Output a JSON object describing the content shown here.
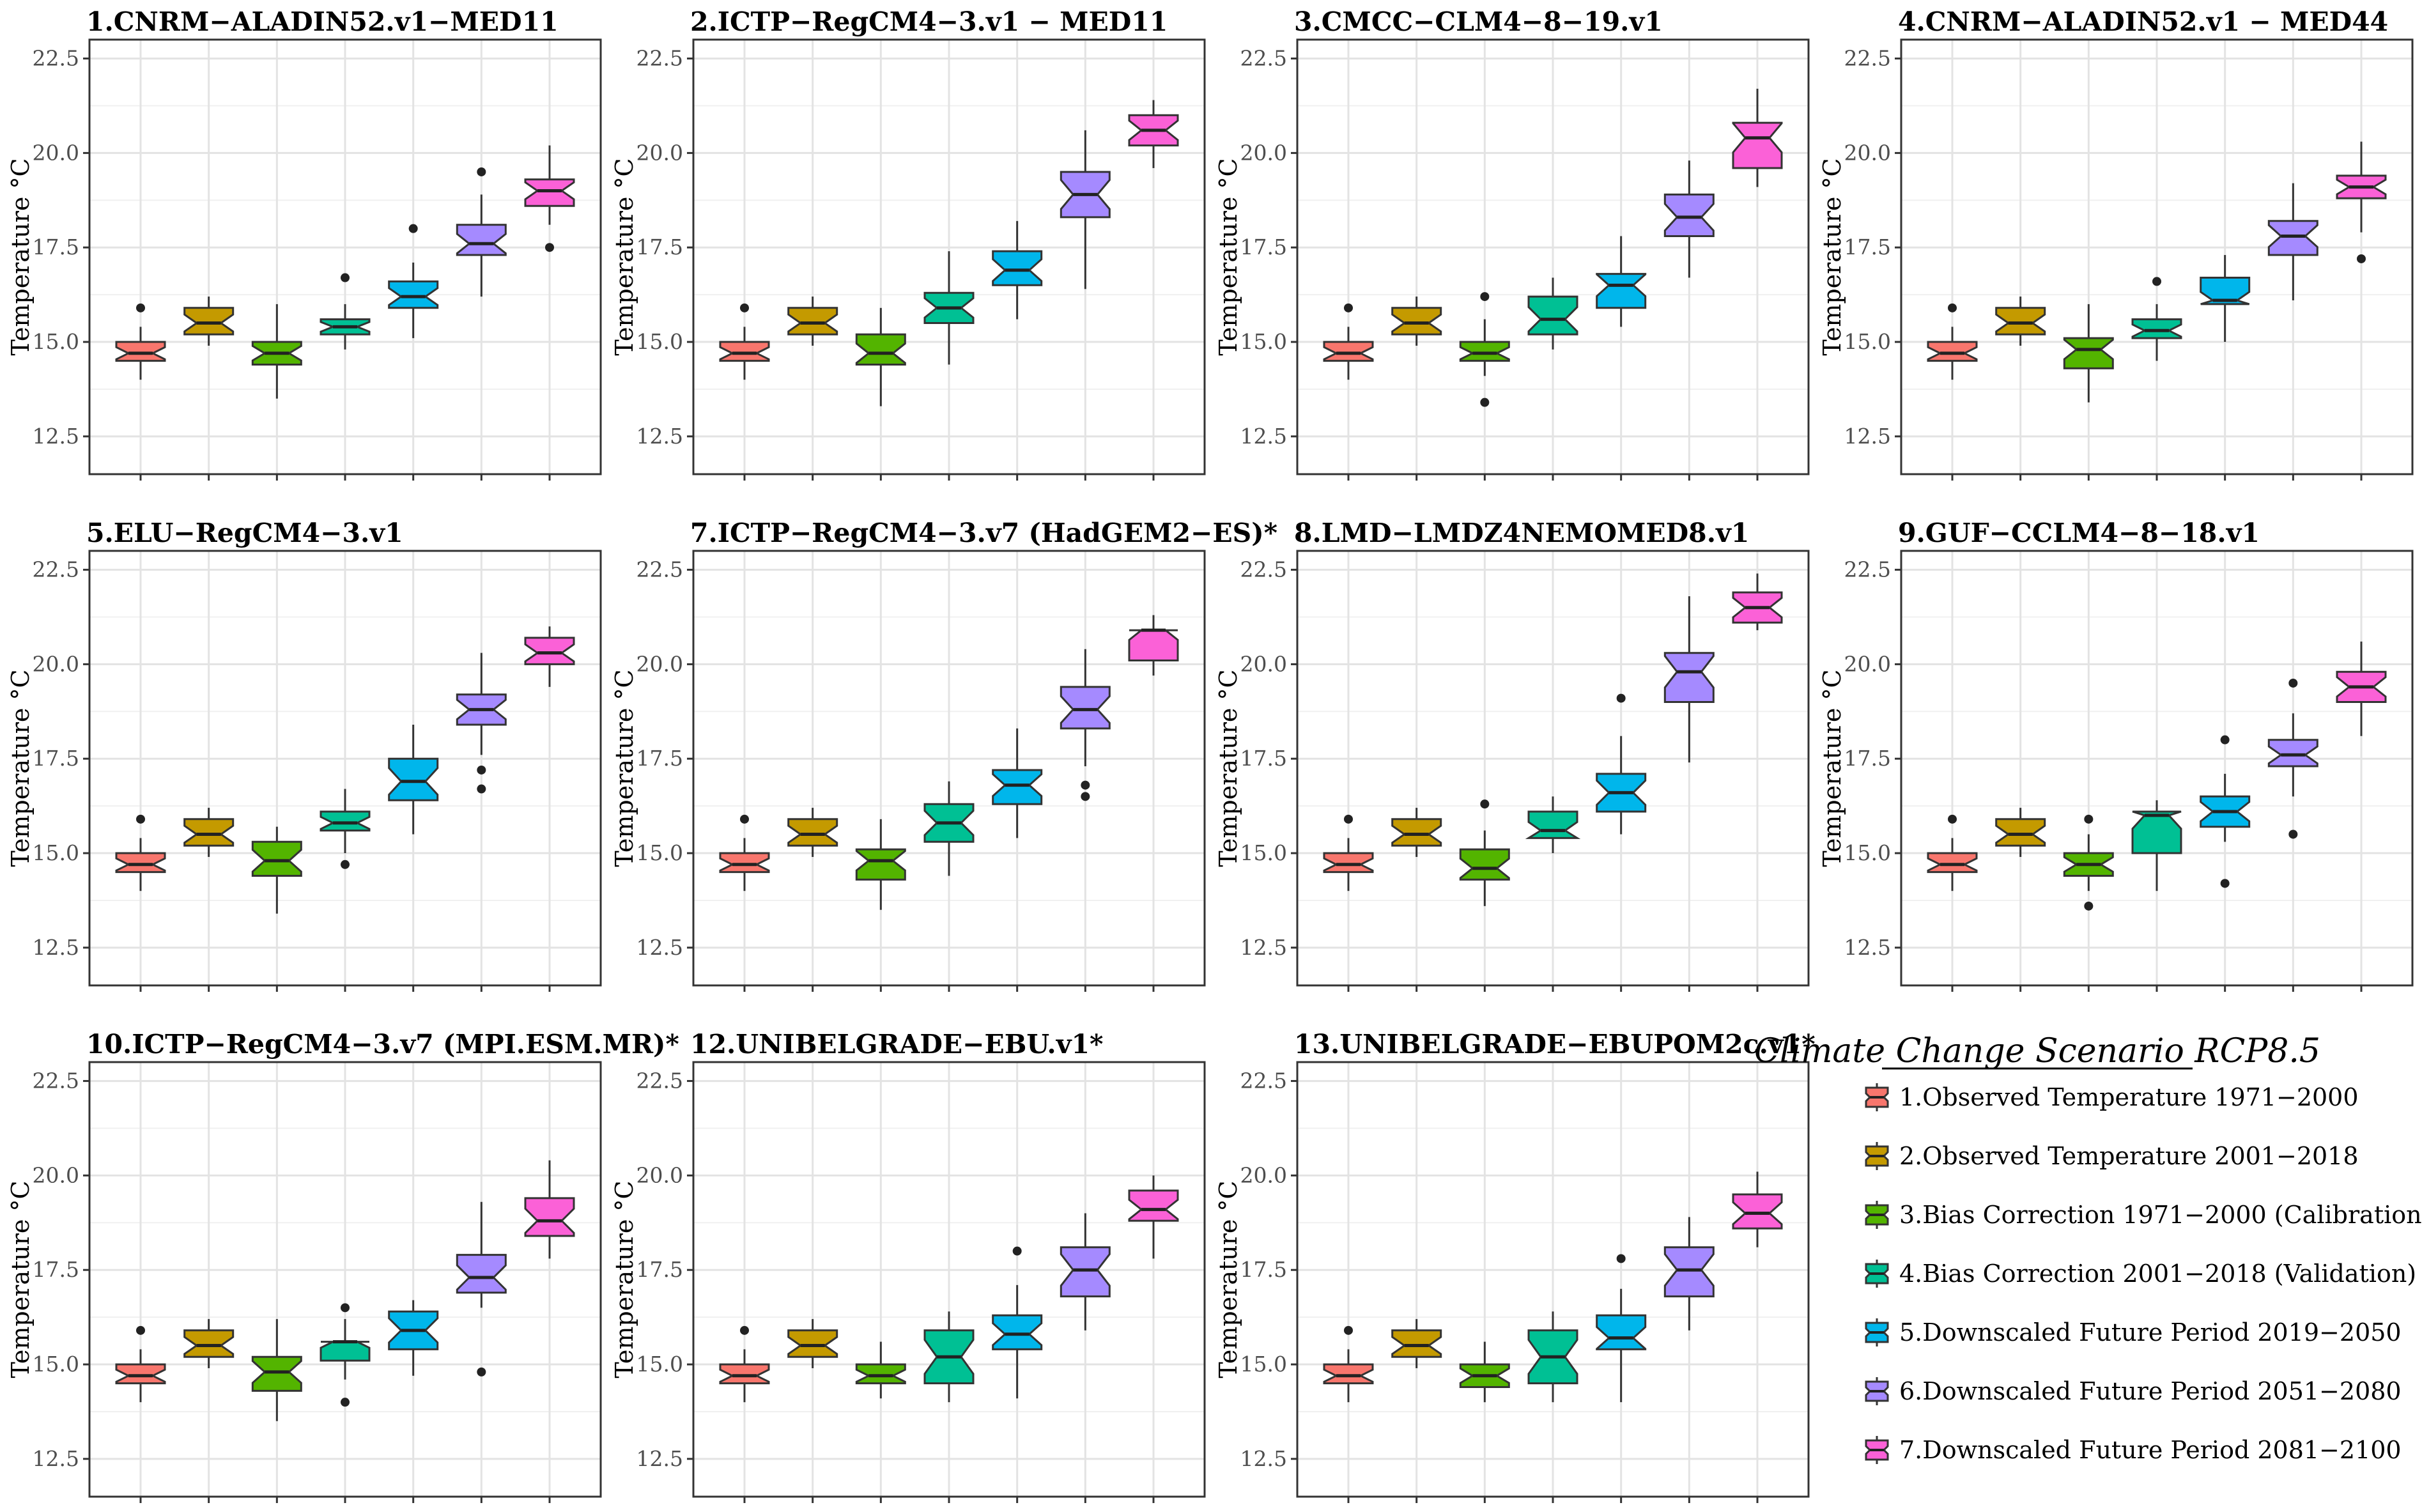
{
  "figure": {
    "ylabel": "Temperature °C",
    "yticks": [
      12.5,
      15.0,
      17.5,
      20.0,
      22.5
    ],
    "ylim": [
      11.5,
      23.0
    ]
  },
  "legend": {
    "title": "Climate Change Scenario RCP8.5",
    "items": [
      {
        "label": "1.Observed Temperature 1971−2000",
        "color": "#f8766d"
      },
      {
        "label": "2.Observed Temperature 2001−2018",
        "color": "#c49a00"
      },
      {
        "label": "3.Bias Correction 1971−2000 (Calibration)",
        "color": "#53b400"
      },
      {
        "label": "4.Bias Correction 2001−2018 (Validation)",
        "color": "#00c094"
      },
      {
        "label": "5.Downscaled Future Period 2019−2050",
        "color": "#00b6eb"
      },
      {
        "label": "6.Downscaled Future Period 2051−2080",
        "color": "#a58aff"
      },
      {
        "label": "7.Downscaled Future Period 2081−2100",
        "color": "#fb61d7"
      }
    ]
  },
  "chart_data": [
    {
      "type": "boxplot",
      "title": "1.CNRM−ALADIN52.v1−MED11",
      "ylabel": "Temperature °C",
      "ylim": [
        11.5,
        23.0
      ],
      "boxes": [
        {
          "min": 14.0,
          "q1": 14.5,
          "median": 14.7,
          "q3": 15.0,
          "max": 15.4,
          "outliers": [
            15.9
          ]
        },
        {
          "min": 14.9,
          "q1": 15.2,
          "median": 15.5,
          "q3": 15.9,
          "max": 16.2,
          "outliers": []
        },
        {
          "min": 13.5,
          "q1": 14.4,
          "median": 14.7,
          "q3": 15.0,
          "max": 16.0,
          "outliers": []
        },
        {
          "min": 14.8,
          "q1": 15.2,
          "median": 15.4,
          "q3": 15.6,
          "max": 16.0,
          "outliers": [
            16.7
          ]
        },
        {
          "min": 15.1,
          "q1": 15.9,
          "median": 16.2,
          "q3": 16.6,
          "max": 17.1,
          "outliers": [
            18.0
          ]
        },
        {
          "min": 16.2,
          "q1": 17.3,
          "median": 17.6,
          "q3": 18.1,
          "max": 18.9,
          "outliers": [
            19.5
          ]
        },
        {
          "min": 18.1,
          "q1": 18.6,
          "median": 19.0,
          "q3": 19.3,
          "max": 20.2,
          "outliers": [
            17.5
          ]
        }
      ]
    },
    {
      "type": "boxplot",
      "title": "2.ICTP−RegCM4−3.v1 − MED11",
      "ylabel": "Temperature °C",
      "ylim": [
        11.5,
        23.0
      ],
      "boxes": [
        {
          "min": 14.0,
          "q1": 14.5,
          "median": 14.7,
          "q3": 15.0,
          "max": 15.4,
          "outliers": [
            15.9
          ]
        },
        {
          "min": 14.9,
          "q1": 15.2,
          "median": 15.5,
          "q3": 15.9,
          "max": 16.2,
          "outliers": []
        },
        {
          "min": 13.3,
          "q1": 14.4,
          "median": 14.7,
          "q3": 15.2,
          "max": 15.9,
          "outliers": []
        },
        {
          "min": 14.4,
          "q1": 15.5,
          "median": 15.9,
          "q3": 16.3,
          "max": 17.4,
          "outliers": []
        },
        {
          "min": 15.6,
          "q1": 16.5,
          "median": 16.9,
          "q3": 17.4,
          "max": 18.2,
          "outliers": []
        },
        {
          "min": 16.4,
          "q1": 18.3,
          "median": 18.9,
          "q3": 19.5,
          "max": 20.6,
          "outliers": []
        },
        {
          "min": 19.6,
          "q1": 20.2,
          "median": 20.6,
          "q3": 21.0,
          "max": 21.4,
          "outliers": []
        }
      ]
    },
    {
      "type": "boxplot",
      "title": "3.CMCC−CLM4−8−19.v1",
      "ylabel": "Temperature °C",
      "ylim": [
        11.5,
        23.0
      ],
      "boxes": [
        {
          "min": 14.0,
          "q1": 14.5,
          "median": 14.7,
          "q3": 15.0,
          "max": 15.4,
          "outliers": [
            15.9
          ]
        },
        {
          "min": 14.9,
          "q1": 15.2,
          "median": 15.5,
          "q3": 15.9,
          "max": 16.2,
          "outliers": []
        },
        {
          "min": 14.1,
          "q1": 14.5,
          "median": 14.7,
          "q3": 15.0,
          "max": 15.6,
          "outliers": [
            16.2,
            13.4
          ]
        },
        {
          "min": 14.8,
          "q1": 15.2,
          "median": 15.6,
          "q3": 16.2,
          "max": 16.7,
          "outliers": []
        },
        {
          "min": 15.4,
          "q1": 15.9,
          "median": 16.5,
          "q3": 16.8,
          "max": 17.8,
          "outliers": []
        },
        {
          "min": 16.7,
          "q1": 17.8,
          "median": 18.3,
          "q3": 18.9,
          "max": 19.8,
          "outliers": []
        },
        {
          "min": 19.1,
          "q1": 19.6,
          "median": 20.4,
          "q3": 20.8,
          "max": 21.7,
          "outliers": []
        }
      ]
    },
    {
      "type": "boxplot",
      "title": "4.CNRM−ALADIN52.v1 − MED44",
      "ylabel": "Temperature °C",
      "ylim": [
        11.5,
        23.0
      ],
      "boxes": [
        {
          "min": 14.0,
          "q1": 14.5,
          "median": 14.7,
          "q3": 15.0,
          "max": 15.4,
          "outliers": [
            15.9
          ]
        },
        {
          "min": 14.9,
          "q1": 15.2,
          "median": 15.5,
          "q3": 15.9,
          "max": 16.2,
          "outliers": []
        },
        {
          "min": 13.4,
          "q1": 14.3,
          "median": 14.8,
          "q3": 15.1,
          "max": 16.0,
          "outliers": []
        },
        {
          "min": 14.5,
          "q1": 15.1,
          "median": 15.3,
          "q3": 15.6,
          "max": 16.0,
          "outliers": [
            16.6
          ]
        },
        {
          "min": 15.0,
          "q1": 16.0,
          "median": 16.1,
          "q3": 16.7,
          "max": 17.3,
          "outliers": []
        },
        {
          "min": 16.1,
          "q1": 17.3,
          "median": 17.8,
          "q3": 18.2,
          "max": 19.2,
          "outliers": []
        },
        {
          "min": 17.9,
          "q1": 18.8,
          "median": 19.1,
          "q3": 19.4,
          "max": 20.3,
          "outliers": [
            17.2
          ]
        }
      ]
    },
    {
      "type": "boxplot",
      "title": "5.ELU−RegCM4−3.v1",
      "ylabel": "Temperature °C",
      "ylim": [
        11.5,
        23.0
      ],
      "boxes": [
        {
          "min": 14.0,
          "q1": 14.5,
          "median": 14.7,
          "q3": 15.0,
          "max": 15.4,
          "outliers": [
            15.9
          ]
        },
        {
          "min": 14.9,
          "q1": 15.2,
          "median": 15.5,
          "q3": 15.9,
          "max": 16.2,
          "outliers": []
        },
        {
          "min": 13.4,
          "q1": 14.4,
          "median": 14.8,
          "q3": 15.3,
          "max": 15.7,
          "outliers": []
        },
        {
          "min": 15.0,
          "q1": 15.6,
          "median": 15.8,
          "q3": 16.1,
          "max": 16.7,
          "outliers": [
            14.7
          ]
        },
        {
          "min": 15.5,
          "q1": 16.4,
          "median": 16.9,
          "q3": 17.5,
          "max": 18.4,
          "outliers": []
        },
        {
          "min": 17.6,
          "q1": 18.4,
          "median": 18.8,
          "q3": 19.2,
          "max": 20.3,
          "outliers": [
            17.2,
            16.7
          ]
        },
        {
          "min": 19.4,
          "q1": 20.0,
          "median": 20.3,
          "q3": 20.7,
          "max": 21.0,
          "outliers": []
        }
      ]
    },
    {
      "type": "boxplot",
      "title": "7.ICTP−RegCM4−3.v7 (HadGEM2−ES)*",
      "ylabel": "Temperature °C",
      "ylim": [
        11.5,
        23.0
      ],
      "boxes": [
        {
          "min": 14.0,
          "q1": 14.5,
          "median": 14.7,
          "q3": 15.0,
          "max": 15.4,
          "outliers": [
            15.9
          ]
        },
        {
          "min": 14.9,
          "q1": 15.2,
          "median": 15.5,
          "q3": 15.9,
          "max": 16.2,
          "outliers": []
        },
        {
          "min": 13.5,
          "q1": 14.3,
          "median": 14.8,
          "q3": 15.1,
          "max": 15.9,
          "outliers": []
        },
        {
          "min": 14.4,
          "q1": 15.3,
          "median": 15.8,
          "q3": 16.3,
          "max": 16.9,
          "outliers": []
        },
        {
          "min": 15.4,
          "q1": 16.3,
          "median": 16.8,
          "q3": 17.2,
          "max": 18.3,
          "outliers": []
        },
        {
          "min": 17.3,
          "q1": 18.3,
          "median": 18.8,
          "q3": 19.4,
          "max": 20.4,
          "outliers": [
            16.8,
            16.5
          ]
        },
        {
          "min": 19.7,
          "q1": 20.1,
          "median": 20.9,
          "q3": 20.9,
          "max": 21.3,
          "outliers": []
        }
      ]
    },
    {
      "type": "boxplot",
      "title": "8.LMD−LMDZ4NEMOMED8.v1",
      "ylabel": "Temperature °C",
      "ylim": [
        11.5,
        23.0
      ],
      "boxes": [
        {
          "min": 14.0,
          "q1": 14.5,
          "median": 14.7,
          "q3": 15.0,
          "max": 15.4,
          "outliers": [
            15.9
          ]
        },
        {
          "min": 14.9,
          "q1": 15.2,
          "median": 15.5,
          "q3": 15.9,
          "max": 16.2,
          "outliers": []
        },
        {
          "min": 13.6,
          "q1": 14.3,
          "median": 14.6,
          "q3": 15.1,
          "max": 15.6,
          "outliers": [
            16.3
          ]
        },
        {
          "min": 15.0,
          "q1": 15.4,
          "median": 15.6,
          "q3": 16.1,
          "max": 16.5,
          "outliers": []
        },
        {
          "min": 15.5,
          "q1": 16.1,
          "median": 16.6,
          "q3": 17.1,
          "max": 18.1,
          "outliers": [
            19.1
          ]
        },
        {
          "min": 17.4,
          "q1": 19.0,
          "median": 19.8,
          "q3": 20.3,
          "max": 21.8,
          "outliers": []
        },
        {
          "min": 20.9,
          "q1": 21.1,
          "median": 21.5,
          "q3": 21.9,
          "max": 22.4,
          "outliers": []
        }
      ]
    },
    {
      "type": "boxplot",
      "title": "9.GUF−CCLM4−8−18.v1",
      "ylabel": "Temperature °C",
      "ylim": [
        11.5,
        23.0
      ],
      "boxes": [
        {
          "min": 14.0,
          "q1": 14.5,
          "median": 14.7,
          "q3": 15.0,
          "max": 15.4,
          "outliers": [
            15.9
          ]
        },
        {
          "min": 14.9,
          "q1": 15.2,
          "median": 15.5,
          "q3": 15.9,
          "max": 16.2,
          "outliers": []
        },
        {
          "min": 14.0,
          "q1": 14.4,
          "median": 14.7,
          "q3": 15.0,
          "max": 15.5,
          "outliers": [
            15.9,
            13.6
          ]
        },
        {
          "min": 14.0,
          "q1": 15.0,
          "median": 16.0,
          "q3": 16.1,
          "max": 16.4,
          "outliers": []
        },
        {
          "min": 15.3,
          "q1": 15.7,
          "median": 16.1,
          "q3": 16.5,
          "max": 17.1,
          "outliers": [
            18.0,
            14.2
          ]
        },
        {
          "min": 16.5,
          "q1": 17.3,
          "median": 17.6,
          "q3": 18.0,
          "max": 18.7,
          "outliers": [
            19.5,
            15.5
          ]
        },
        {
          "min": 18.1,
          "q1": 19.0,
          "median": 19.4,
          "q3": 19.8,
          "max": 20.6,
          "outliers": []
        }
      ]
    },
    {
      "type": "boxplot",
      "title": "10.ICTP−RegCM4−3.v7 (MPI.ESM.MR)*",
      "ylabel": "Temperature °C",
      "ylim": [
        11.5,
        23.0
      ],
      "boxes": [
        {
          "min": 14.0,
          "q1": 14.5,
          "median": 14.7,
          "q3": 15.0,
          "max": 15.4,
          "outliers": [
            15.9
          ]
        },
        {
          "min": 14.9,
          "q1": 15.2,
          "median": 15.5,
          "q3": 15.9,
          "max": 16.2,
          "outliers": []
        },
        {
          "min": 13.5,
          "q1": 14.3,
          "median": 14.8,
          "q3": 15.2,
          "max": 16.2,
          "outliers": []
        },
        {
          "min": 14.6,
          "q1": 15.1,
          "median": 15.6,
          "q3": 15.6,
          "max": 16.2,
          "outliers": [
            16.5,
            14.0
          ]
        },
        {
          "min": 14.7,
          "q1": 15.4,
          "median": 15.9,
          "q3": 16.4,
          "max": 16.7,
          "outliers": []
        },
        {
          "min": 16.5,
          "q1": 16.9,
          "median": 17.3,
          "q3": 17.9,
          "max": 19.3,
          "outliers": [
            14.8
          ]
        },
        {
          "min": 17.8,
          "q1": 18.4,
          "median": 18.8,
          "q3": 19.4,
          "max": 20.4,
          "outliers": []
        }
      ]
    },
    {
      "type": "boxplot",
      "title": "12.UNIBELGRADE−EBU.v1*",
      "ylabel": "Temperature °C",
      "ylim": [
        11.5,
        23.0
      ],
      "boxes": [
        {
          "min": 14.0,
          "q1": 14.5,
          "median": 14.7,
          "q3": 15.0,
          "max": 15.4,
          "outliers": [
            15.9
          ]
        },
        {
          "min": 14.9,
          "q1": 15.2,
          "median": 15.5,
          "q3": 15.9,
          "max": 16.2,
          "outliers": []
        },
        {
          "min": 14.1,
          "q1": 14.5,
          "median": 14.7,
          "q3": 15.0,
          "max": 15.6,
          "outliers": []
        },
        {
          "min": 14.0,
          "q1": 14.5,
          "median": 15.2,
          "q3": 15.9,
          "max": 16.4,
          "outliers": []
        },
        {
          "min": 14.1,
          "q1": 15.4,
          "median": 15.8,
          "q3": 16.3,
          "max": 17.1,
          "outliers": [
            18.0
          ]
        },
        {
          "min": 15.9,
          "q1": 16.8,
          "median": 17.5,
          "q3": 18.1,
          "max": 19.0,
          "outliers": []
        },
        {
          "min": 17.8,
          "q1": 18.8,
          "median": 19.1,
          "q3": 19.6,
          "max": 20.0,
          "outliers": []
        }
      ]
    },
    {
      "type": "boxplot",
      "title": "13.UNIBELGRADE−EBUPOM2c.v1*",
      "ylabel": "Temperature °C",
      "ylim": [
        11.5,
        23.0
      ],
      "boxes": [
        {
          "min": 14.0,
          "q1": 14.5,
          "median": 14.7,
          "q3": 15.0,
          "max": 15.4,
          "outliers": [
            15.9
          ]
        },
        {
          "min": 14.9,
          "q1": 15.2,
          "median": 15.5,
          "q3": 15.9,
          "max": 16.2,
          "outliers": []
        },
        {
          "min": 14.0,
          "q1": 14.4,
          "median": 14.7,
          "q3": 15.0,
          "max": 15.6,
          "outliers": []
        },
        {
          "min": 14.0,
          "q1": 14.5,
          "median": 15.2,
          "q3": 15.9,
          "max": 16.4,
          "outliers": []
        },
        {
          "min": 14.0,
          "q1": 15.4,
          "median": 15.7,
          "q3": 16.3,
          "max": 17.0,
          "outliers": [
            17.8
          ]
        },
        {
          "min": 15.9,
          "q1": 16.8,
          "median": 17.5,
          "q3": 18.1,
          "max": 18.9,
          "outliers": []
        },
        {
          "min": 18.1,
          "q1": 18.6,
          "median": 19.0,
          "q3": 19.5,
          "max": 20.1,
          "outliers": []
        }
      ]
    }
  ]
}
